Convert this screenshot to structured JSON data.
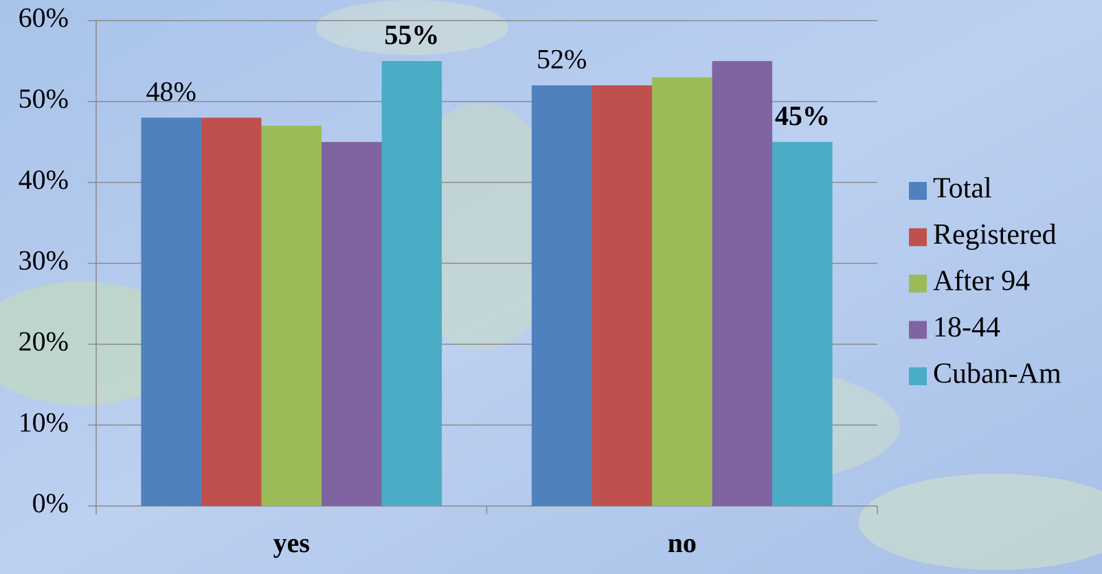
{
  "chart_data": {
    "type": "bar",
    "categories": [
      "yes",
      "no"
    ],
    "series": [
      {
        "name": "Total",
        "color": "#4f81bd",
        "values": [
          48,
          52
        ],
        "value_labels": [
          "48%",
          "52%"
        ]
      },
      {
        "name": "Registered",
        "color": "#c0504d",
        "values": [
          48,
          52
        ],
        "value_labels": [
          null,
          null
        ]
      },
      {
        "name": "After 94",
        "color": "#9bbb59",
        "values": [
          47,
          53
        ],
        "value_labels": [
          null,
          null
        ]
      },
      {
        "name": "18-44",
        "color": "#8064a2",
        "values": [
          45,
          55
        ],
        "value_labels": [
          null,
          null
        ]
      },
      {
        "name": "Cuban-Am",
        "color": "#4bacc6",
        "values": [
          55,
          45
        ],
        "value_labels": [
          "55%",
          "45%"
        ],
        "label_bold": true
      }
    ],
    "ylim": [
      0,
      60
    ],
    "yticks": [
      {
        "value": 0,
        "label": "0%"
      },
      {
        "value": 10,
        "label": "10%"
      },
      {
        "value": 20,
        "label": "20%"
      },
      {
        "value": 30,
        "label": "30%"
      },
      {
        "value": 40,
        "label": "40%"
      },
      {
        "value": 50,
        "label": "50%"
      },
      {
        "value": 60,
        "label": "60%"
      }
    ],
    "grid": true,
    "legend": "right"
  }
}
